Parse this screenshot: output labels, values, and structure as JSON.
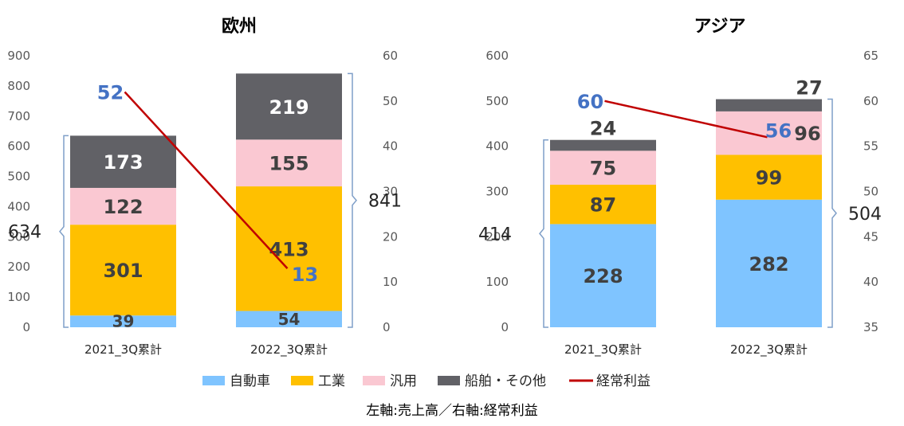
{
  "footnote": "左軸:売上高／右軸:経常利益",
  "legend": [
    {
      "key": "auto",
      "label": "自動車",
      "type": "box"
    },
    {
      "key": "industrial",
      "label": "工業",
      "type": "box"
    },
    {
      "key": "general",
      "label": "汎用",
      "type": "box"
    },
    {
      "key": "marine",
      "label": "船舶・その他",
      "type": "box"
    },
    {
      "key": "profit",
      "label": "経常利益",
      "type": "line"
    }
  ],
  "colors": {
    "auto": "#7fc4ff",
    "industrial": "#ffc000",
    "general": "#fac8d2",
    "marine": "#616166",
    "profit": "#c00000",
    "bracket": "#7f9fc8"
  },
  "chart_data": [
    {
      "type": "bar",
      "stacked": true,
      "title": "欧州",
      "categories": [
        "2021_3Q累計",
        "2022_3Q累計"
      ],
      "left_axis": {
        "min": 0,
        "max": 900,
        "step": 100
      },
      "right_axis": {
        "min": 0,
        "max": 60,
        "step": 10
      },
      "series": [
        {
          "key": "auto",
          "name": "自動車",
          "values": [
            39,
            54
          ]
        },
        {
          "key": "industrial",
          "name": "工業",
          "values": [
            301,
            413
          ]
        },
        {
          "key": "general",
          "name": "汎用",
          "values": [
            122,
            155
          ]
        },
        {
          "key": "marine",
          "name": "船舶・その他",
          "values": [
            173,
            219
          ]
        }
      ],
      "totals": [
        "634",
        "841"
      ],
      "line": {
        "key": "profit",
        "name": "経常利益",
        "axis": "right",
        "values": [
          52,
          13
        ],
        "labels": [
          "52",
          "13"
        ]
      }
    },
    {
      "type": "bar",
      "stacked": true,
      "title": "アジア",
      "categories": [
        "2021_3Q累計",
        "2022_3Q累計"
      ],
      "left_axis": {
        "min": 0,
        "max": 600,
        "step": 100
      },
      "right_axis": {
        "min": 35,
        "max": 65,
        "step": 5
      },
      "series": [
        {
          "key": "auto",
          "name": "自動車",
          "values": [
            228,
            282
          ]
        },
        {
          "key": "industrial",
          "name": "工業",
          "values": [
            87,
            99
          ]
        },
        {
          "key": "general",
          "name": "汎用",
          "values": [
            75,
            96
          ]
        },
        {
          "key": "marine",
          "name": "船舶・その他",
          "values": [
            24,
            27
          ]
        }
      ],
      "totals": [
        "414",
        "504"
      ],
      "line": {
        "key": "profit",
        "name": "経常利益",
        "axis": "right",
        "values": [
          60,
          56
        ],
        "labels": [
          "60",
          "56"
        ]
      }
    }
  ]
}
